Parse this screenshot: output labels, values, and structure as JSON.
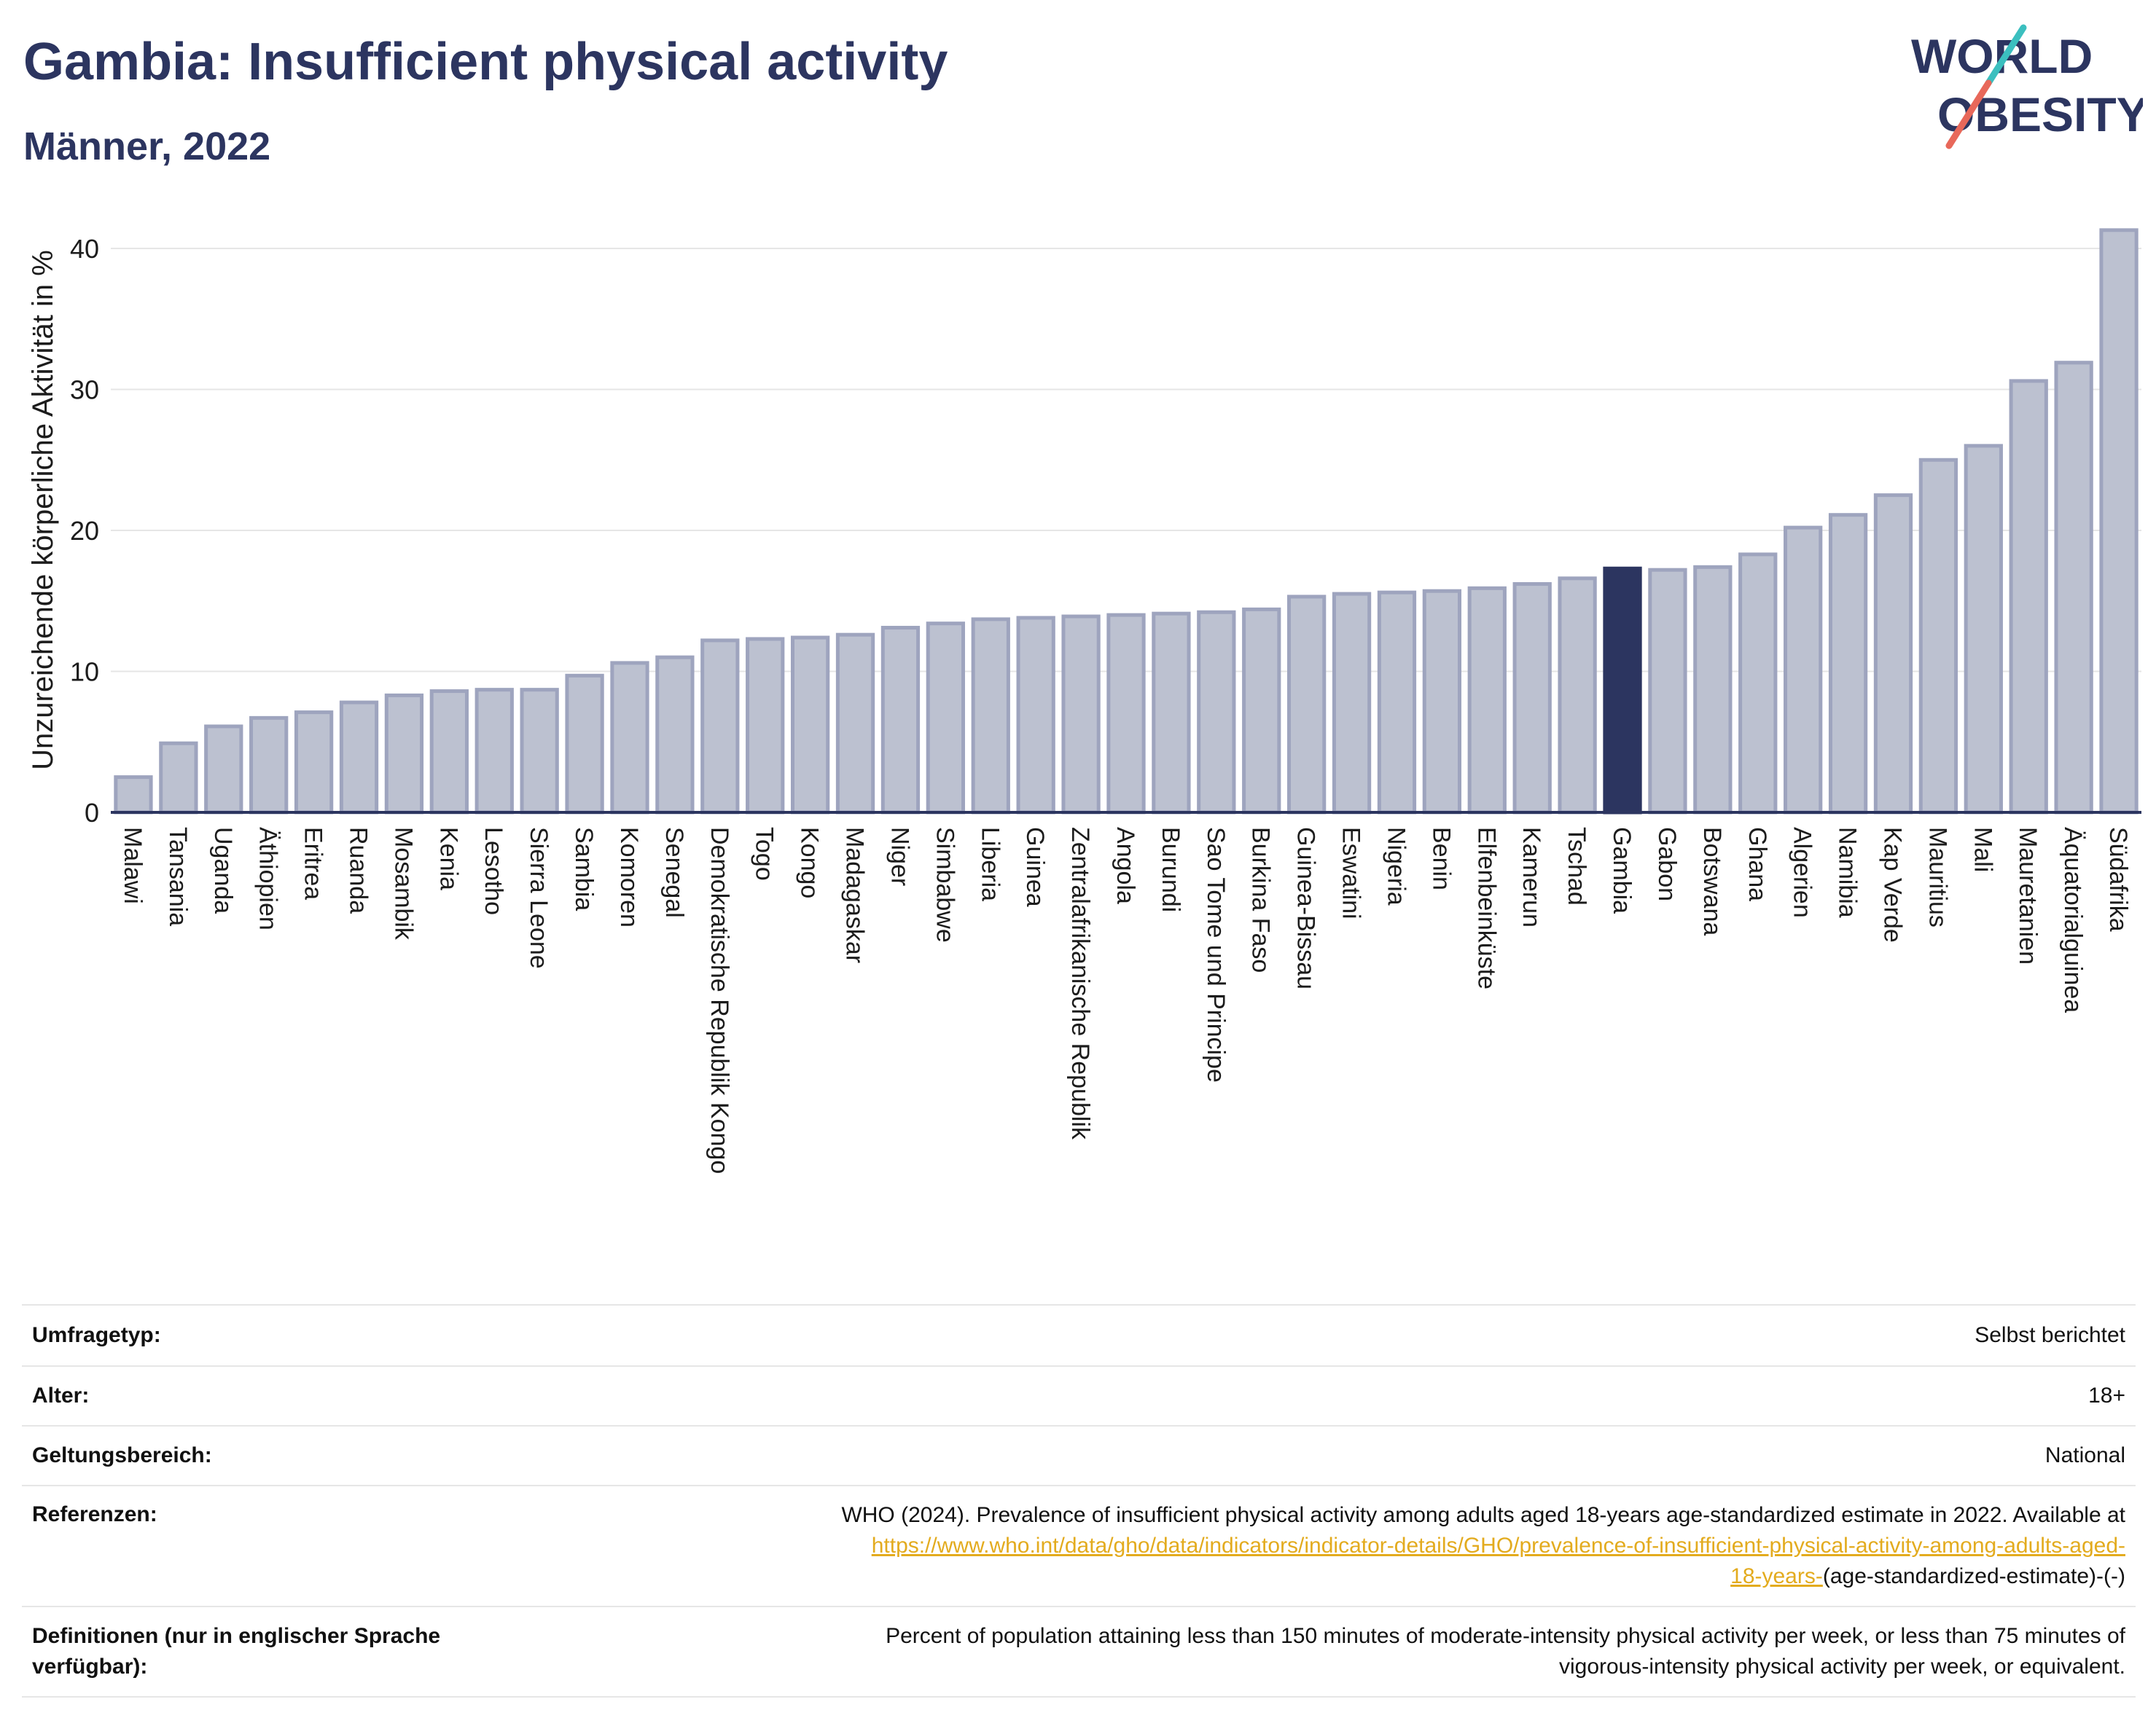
{
  "header": {
    "title": "Gambia: Insufficient physical activity",
    "subtitle": "Männer, 2022",
    "logo": {
      "line1": "WORLD",
      "line2": "OBESITY"
    }
  },
  "chart_data": {
    "type": "bar",
    "title": "Gambia: Insufficient physical activity",
    "subtitle": "Männer, 2022",
    "xlabel": "",
    "ylabel": "Unzureichende körperliche Aktivität in %",
    "ylim": [
      0,
      42.5
    ],
    "yticks": [
      0,
      10,
      20,
      30,
      40
    ],
    "grid": true,
    "highlight": "Gambia",
    "colors": {
      "bar": "#bcc1d0",
      "bar_edge": "#9ea4be",
      "highlight": "#2c3560",
      "grid": "#e6e6e6",
      "axis": "#2c3560"
    },
    "categories": [
      "Malawi",
      "Tansania",
      "Uganda",
      "Äthiopien",
      "Eritrea",
      "Ruanda",
      "Mosambik",
      "Kenia",
      "Lesotho",
      "Sierra Leone",
      "Sambia",
      "Komoren",
      "Senegal",
      "Demokratische Republik Kongo",
      "Togo",
      "Kongo",
      "Madagaskar",
      "Niger",
      "Simbabwe",
      "Liberia",
      "Guinea",
      "Zentralafrikanische Republik",
      "Angola",
      "Burundi",
      "Sao Tome und Principe",
      "Burkina Faso",
      "Guinea-Bissau",
      "Eswatini",
      "Nigeria",
      "Benin",
      "Elfenbeinküste",
      "Kamerun",
      "Tschad",
      "Gambia",
      "Gabon",
      "Botswana",
      "Ghana",
      "Algerien",
      "Namibia",
      "Kap Verde",
      "Mauritius",
      "Mali",
      "Mauretanien",
      "Äquatorialguinea",
      "Südafrika"
    ],
    "values": [
      2.5,
      4.9,
      6.1,
      6.7,
      7.1,
      7.8,
      8.3,
      8.6,
      8.7,
      8.7,
      9.7,
      10.6,
      11.0,
      12.2,
      12.3,
      12.4,
      12.6,
      13.1,
      13.4,
      13.7,
      13.8,
      13.9,
      14.0,
      14.1,
      14.2,
      14.4,
      15.3,
      15.5,
      15.6,
      15.7,
      15.9,
      16.2,
      16.6,
      17.3,
      17.2,
      17.4,
      18.3,
      20.2,
      21.1,
      22.5,
      25.0,
      26.0,
      30.6,
      31.9,
      41.3
    ]
  },
  "info": {
    "rows": [
      {
        "label": "Umfragetyp:",
        "value": "Selbst berichtet"
      },
      {
        "label": "Alter:",
        "value": "18+"
      },
      {
        "label": "Geltungsbereich:",
        "value": "National"
      }
    ],
    "references": {
      "label": "Referenzen:",
      "text": "WHO (2024). Prevalence of insufficient physical activity among adults aged 18-years age-standardized estimate in 2022. Available at",
      "link_line1": "https://www.who.int/data/gho/data/indicators/indicator-details/GHO/prevalence-of-insufficient-physical-activity-among-adults-aged-",
      "link_line2": "18-years-",
      "suffix": "(age-standardized-estimate)-(-)"
    },
    "definitions": {
      "label_line1": "Definitionen (nur in englischer Sprache",
      "label_line2": "verfügbar):",
      "value_line1": "Percent of population attaining less than 150 minutes of moderate-intensity physical activity per week, or less than 75 minutes of",
      "value_line2": "vigorous-intensity physical activity per week, or equivalent."
    }
  }
}
